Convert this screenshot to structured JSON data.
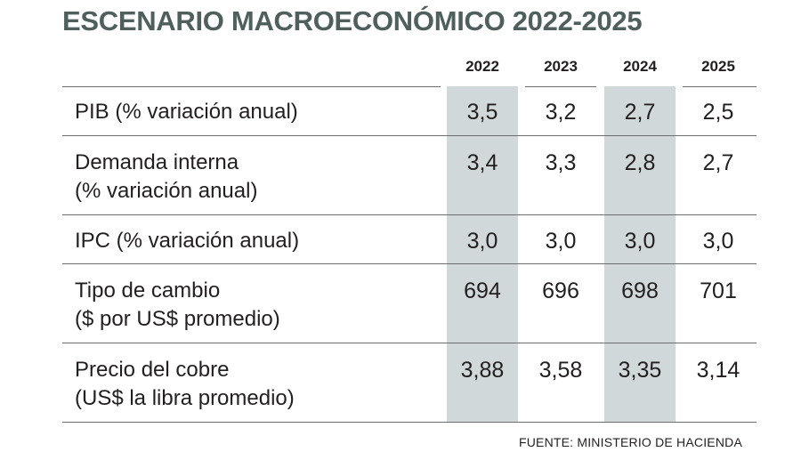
{
  "title": "ESCENARIO MACROECONÓMICO 2022-2025",
  "years": [
    "2022",
    "2023",
    "2024",
    "2025"
  ],
  "rows": [
    {
      "label_line1": "PIB (% variación anual)",
      "label_line2": "",
      "values": [
        "3,5",
        "3,2",
        "2,7",
        "2,5"
      ]
    },
    {
      "label_line1": "Demanda interna",
      "label_line2": "(% variación anual)",
      "values": [
        "3,4",
        "3,3",
        "2,8",
        "2,7"
      ]
    },
    {
      "label_line1": "IPC (% variación anual)",
      "label_line2": "",
      "values": [
        "3,0",
        "3,0",
        "3,0",
        "3,0"
      ]
    },
    {
      "label_line1": "Tipo de cambio",
      "label_line2": "($ por US$ promedio)",
      "values": [
        "694",
        "696",
        "698",
        "701"
      ]
    },
    {
      "label_line1": "Precio del cobre",
      "label_line2": "(US$ la libra promedio)",
      "values": [
        "3,88",
        "3,58",
        "3,35",
        "3,14"
      ]
    }
  ],
  "source": "FUENTE: MINISTERIO DE HACIENDA",
  "colors": {
    "title": "#4e5f5e",
    "shaded_column": "#d0d8da",
    "rule": "#6d6e71"
  }
}
